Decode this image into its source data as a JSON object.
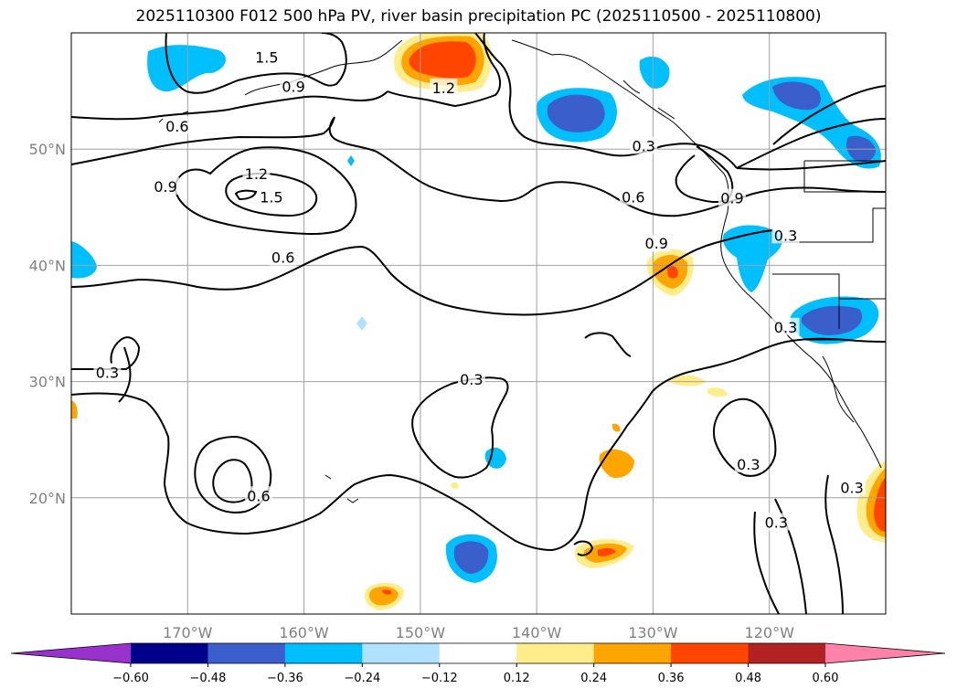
{
  "title": "2025110300 F012 500 hPa PV, river basin precipitation PC (2025110500 - 2025110800)",
  "map": {
    "extent": {
      "lon_min": -180,
      "lon_max": -110,
      "lat_min": 10,
      "lat_max": 60
    },
    "lat_ticks": [
      {
        "value": 20,
        "label": "20°N"
      },
      {
        "value": 30,
        "label": "30°N"
      },
      {
        "value": 40,
        "label": "40°N"
      },
      {
        "value": 50,
        "label": "50°N"
      }
    ],
    "lon_ticks": [
      {
        "value": -170,
        "label": "170°W"
      },
      {
        "value": -160,
        "label": "160°W"
      },
      {
        "value": -150,
        "label": "150°W"
      },
      {
        "value": -140,
        "label": "140°W"
      },
      {
        "value": -130,
        "label": "130°W"
      },
      {
        "value": -120,
        "label": "120°W"
      }
    ],
    "contour_labels": [
      {
        "text": "1.5",
        "lon": -163.2,
        "lat": 57.9
      },
      {
        "text": "0.9",
        "lon": -160.9,
        "lat": 55.4
      },
      {
        "text": "0.6",
        "lon": -170.9,
        "lat": 52.0
      },
      {
        "text": "1.2",
        "lon": -148.0,
        "lat": 55.3
      },
      {
        "text": "1.2",
        "lon": -164.1,
        "lat": 47.9
      },
      {
        "text": "1.5",
        "lon": -162.8,
        "lat": 45.9
      },
      {
        "text": "0.9",
        "lon": -171.9,
        "lat": 46.8
      },
      {
        "text": "0.3",
        "lon": -130.8,
        "lat": 50.3
      },
      {
        "text": "0.9",
        "lon": -123.2,
        "lat": 45.8
      },
      {
        "text": "0.6",
        "lon": -131.7,
        "lat": 45.9
      },
      {
        "text": "0.9",
        "lon": -129.7,
        "lat": 41.9
      },
      {
        "text": "0.3",
        "lon": -118.6,
        "lat": 42.6
      },
      {
        "text": "0.6",
        "lon": -161.8,
        "lat": 40.7
      },
      {
        "text": "0.3",
        "lon": -118.6,
        "lat": 34.7
      },
      {
        "text": "0.3",
        "lon": -176.9,
        "lat": 30.8
      },
      {
        "text": "0.3",
        "lon": -145.6,
        "lat": 30.2
      },
      {
        "text": "0.3",
        "lon": -121.8,
        "lat": 22.9
      },
      {
        "text": "0.6",
        "lon": -163.9,
        "lat": 20.2
      },
      {
        "text": "0.3",
        "lon": -112.9,
        "lat": 20.9
      },
      {
        "text": "0.3",
        "lon": -119.4,
        "lat": 17.9
      }
    ]
  },
  "colorbar": {
    "colors": [
      "#9932cc",
      "#00008b",
      "#3a5fcd",
      "#00bfff",
      "#b0e2ff",
      "#ffffff",
      "#ffec8b",
      "#ffa500",
      "#ff4500",
      "#b22222",
      "#ff82ab"
    ],
    "tick_labels": [
      "−0.60",
      "−0.48",
      "−0.36",
      "−0.24",
      "−0.12",
      "0.12",
      "0.24",
      "0.36",
      "0.48",
      "0.60"
    ]
  },
  "colors": {
    "text": "#000000",
    "grid": "#a0a0a0",
    "tick_label": "#808080"
  }
}
